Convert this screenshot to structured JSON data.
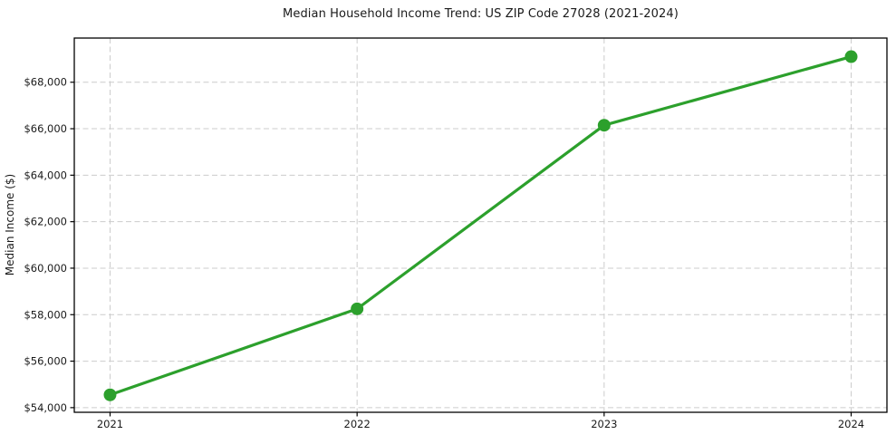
{
  "chart_data": {
    "type": "line",
    "title": "Median Household Income Trend: US ZIP Code 27028 (2021-2024)",
    "xlabel": "",
    "ylabel": "Median Income ($)",
    "categories": [
      "2021",
      "2022",
      "2023",
      "2024"
    ],
    "series": [
      {
        "name": "Median Household Income",
        "values": [
          54550,
          58250,
          66150,
          69100
        ],
        "color": "#2ca02c"
      }
    ],
    "ylim": [
      53800,
      69900
    ],
    "yticks": [
      54000,
      56000,
      58000,
      60000,
      62000,
      64000,
      66000,
      68000
    ],
    "ytick_labels": [
      "$54,000",
      "$56,000",
      "$58,000",
      "$60,000",
      "$62,000",
      "$64,000",
      "$66,000",
      "$68,000"
    ],
    "grid": true,
    "grid_style": "dashed",
    "legend": "none",
    "marker": "circle",
    "colors": {
      "line": "#2ca02c",
      "grid": "#cccccc",
      "spine": "#000000",
      "text": "#1a1a1a",
      "background": "#ffffff"
    }
  }
}
